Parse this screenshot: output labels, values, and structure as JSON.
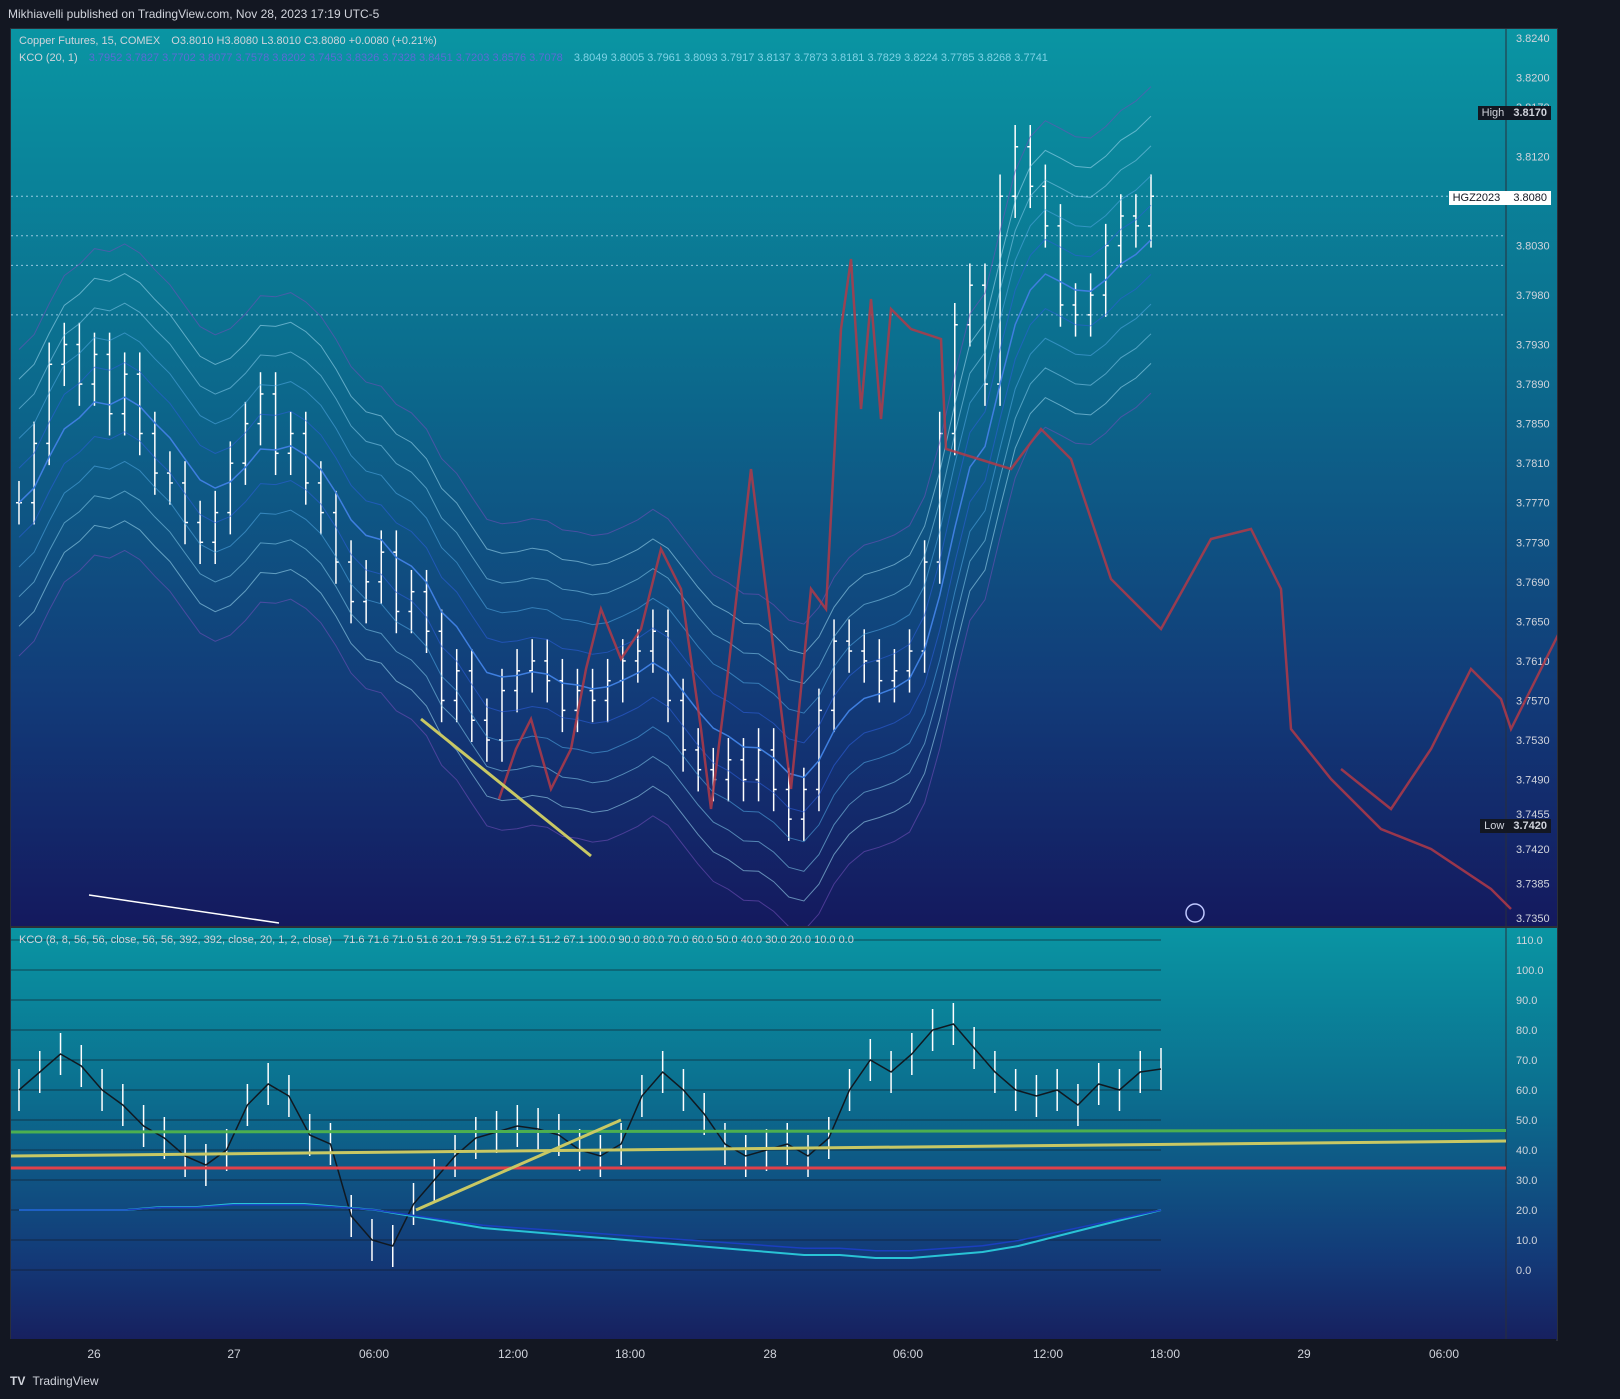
{
  "header": {
    "published": "Mikhiavelli published on TradingView.com, Nov 28, 2023 17:19 UTC-5"
  },
  "main_legend": {
    "title": "Copper Futures, 15, COMEX",
    "ohlc": "O3.8010 H3.8080 L3.8010 C3.8080 +0.0080 (+0.21%)",
    "kco_label": "KCO (20, 1)",
    "kco_values_a": "3.7952  3.7827  3.7702  3.8077  3.7578  3.8202  3.7453  3.8326  3.7328  3.8451  3.7203  3.8576  3.7078",
    "kco_values_b": "3.8049  3.8005  3.7961  3.8093  3.7917  3.8137  3.7873  3.8181  3.7829  3.8224  3.7785  3.8268  3.7741"
  },
  "osc_legend": {
    "label": "KCO (8, 8, 56, 56, close, 56, 56, 392, 392, close, 20, 1, 2, close)",
    "values": "71.6  71.6  71.0  51.6  20.1  79.9  51.2  67.1  51.2  67.1  100.0  90.0  80.0  70.0  60.0  50.0  40.0  30.0  20.0  10.0  0.0"
  },
  "tags": {
    "high_label": "High",
    "high_value": "3.8170",
    "low_label": "Low",
    "low_value": "3.7420",
    "symbol_label": "HGZ2023",
    "symbol_value": "3.8080"
  },
  "footer": {
    "brand": "TradingView"
  },
  "colors": {
    "bull": "#ffffff",
    "drawing_red": "#b23a48",
    "drawing_yellow": "#c8c864",
    "green_line": "#4caf50",
    "red_line": "#e0404a"
  },
  "chart_data": [
    {
      "type": "candlestick",
      "title": "Copper Futures, 15, COMEX",
      "ylim": [
        3.735,
        3.824
      ],
      "y_ticks": [
        "3.8240",
        "3.8200",
        "3.8170",
        "3.8120",
        "3.8030",
        "3.7980",
        "3.7930",
        "3.7890",
        "3.7850",
        "3.7810",
        "3.7770",
        "3.7730",
        "3.7690",
        "3.7650",
        "3.7610",
        "3.7570",
        "3.7530",
        "3.7490",
        "3.7455",
        "3.7420",
        "3.7385",
        "3.7350"
      ],
      "x_ticks": [
        "26",
        "27",
        "06:00",
        "12:00",
        "18:00",
        "28",
        "06:00",
        "12:00",
        "18:00",
        "29",
        "06:00"
      ],
      "close_series": [
        3.777,
        3.783,
        3.791,
        3.793,
        3.789,
        3.792,
        3.786,
        3.79,
        3.784,
        3.78,
        3.779,
        3.775,
        3.773,
        3.776,
        3.781,
        3.785,
        3.788,
        3.782,
        3.784,
        3.779,
        3.776,
        3.771,
        3.767,
        3.769,
        3.772,
        3.766,
        3.768,
        3.764,
        3.757,
        3.76,
        3.755,
        3.753,
        3.758,
        3.76,
        3.761,
        3.759,
        3.756,
        3.758,
        3.757,
        3.759,
        3.761,
        3.762,
        3.764,
        3.757,
        3.752,
        3.75,
        3.749,
        3.751,
        3.749,
        3.752,
        3.748,
        3.745,
        3.748,
        3.756,
        3.763,
        3.762,
        3.761,
        3.759,
        3.76,
        3.762,
        3.771,
        3.784,
        3.795,
        3.799,
        3.789,
        3.808,
        3.813,
        3.809,
        3.805,
        3.797,
        3.796,
        3.798,
        3.803,
        3.806,
        3.805,
        3.808
      ],
      "high": 3.817,
      "low": 3.742,
      "last": 3.808
    },
    {
      "type": "line",
      "title": "KCO (8, 8, 56, 56, close, 56, 56, 392, 392, close, 20, 1, 2, close)",
      "ylim": [
        0,
        110
      ],
      "y_ticks": [
        "110.0",
        "100.0",
        "90.0",
        "80.0",
        "70.0",
        "60.0",
        "50.0",
        "40.0",
        "30.0",
        "20.0",
        "10.0",
        "0.0"
      ],
      "series": [
        {
          "values": [
            60,
            66,
            72,
            68,
            60,
            55,
            48,
            44,
            38,
            35,
            40,
            55,
            62,
            58,
            45,
            42,
            18,
            10,
            8,
            22,
            30,
            38,
            44,
            46,
            48,
            47,
            45,
            40,
            38,
            42,
            58,
            66,
            60,
            52,
            42,
            38,
            40,
            42,
            38,
            44,
            60,
            70,
            66,
            72,
            80,
            82,
            74,
            66,
            60,
            58,
            60,
            55,
            62,
            60,
            66,
            67
          ]
        },
        {
          "values": [
            20,
            20,
            20,
            20,
            21,
            21,
            22,
            22,
            22,
            21,
            20,
            18,
            16,
            14,
            13,
            12,
            11,
            10,
            9,
            8,
            7,
            6,
            5,
            5,
            4,
            4,
            5,
            6,
            8,
            11,
            14,
            17,
            20
          ]
        }
      ]
    }
  ]
}
